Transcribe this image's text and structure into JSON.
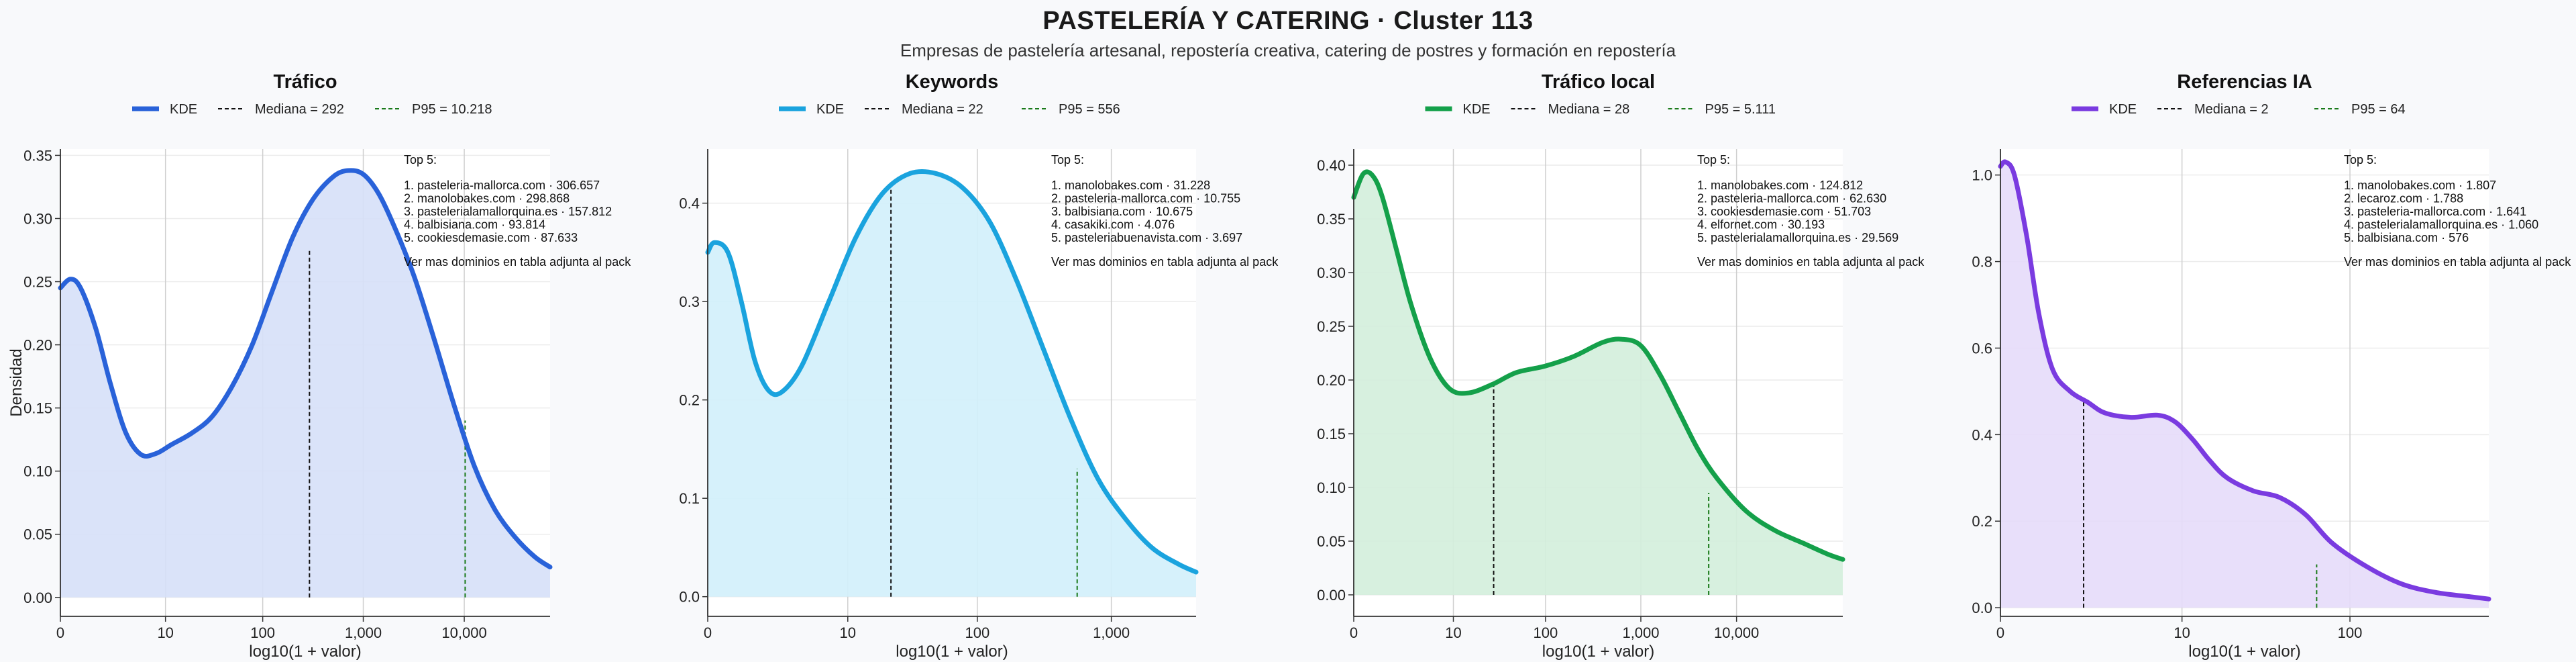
{
  "header": {
    "title": "PASTELERÍA Y CATERING · Cluster 113",
    "subtitle": "Empresas de pastelería artesanal, repostería creativa, catering de postres y formación en repostería"
  },
  "chart_data": [
    {
      "type": "area",
      "title": "Tráfico",
      "xlabel": "log10(1 + valor)",
      "ylabel": "Densidad",
      "color": "#2962d9",
      "fill": "#d6e0f8",
      "xlim": [
        0,
        4.85
      ],
      "ylim": [
        -0.015,
        0.355
      ],
      "yticks": [
        0.0,
        0.05,
        0.1,
        0.15,
        0.2,
        0.25,
        0.3,
        0.35
      ],
      "ytick_labels": [
        "0.00",
        "0.05",
        "0.10",
        "0.15",
        "0.20",
        "0.25",
        "0.30",
        "0.35"
      ],
      "xticks": [
        0,
        1.041,
        2.004,
        3.0,
        4.0
      ],
      "xtick_labels": [
        "0",
        "10",
        "100",
        "1,000",
        "10,000"
      ],
      "kde": {
        "x": [
          0,
          0.1,
          0.2,
          0.35,
          0.5,
          0.65,
          0.8,
          0.95,
          1.1,
          1.3,
          1.5,
          1.7,
          1.9,
          2.1,
          2.3,
          2.5,
          2.7,
          2.85,
          3.0,
          3.15,
          3.3,
          3.5,
          3.7,
          3.9,
          4.1,
          4.3,
          4.5,
          4.7,
          4.85
        ],
        "y": [
          0.245,
          0.252,
          0.245,
          0.213,
          0.168,
          0.13,
          0.113,
          0.114,
          0.121,
          0.13,
          0.143,
          0.167,
          0.2,
          0.243,
          0.285,
          0.315,
          0.333,
          0.338,
          0.335,
          0.32,
          0.295,
          0.255,
          0.205,
          0.152,
          0.104,
          0.07,
          0.048,
          0.032,
          0.024
        ]
      },
      "median": {
        "x": 2.467,
        "y": 0.275
      },
      "p95": {
        "x": 4.009,
        "y": 0.14
      },
      "legend": {
        "kde": "KDE",
        "median": "Mediana = 292",
        "p95": "P95 = 10.218"
      },
      "annotation": {
        "heading": "Top 5:",
        "lines": [
          "1. pasteleria-mallorca.com · 306.657",
          "2. manolobakes.com · 298.868",
          "3. pastelerialamallorquina.es · 157.812",
          "4. balbisiana.com · 93.814",
          "5. cookiesdemasie.com · 87.633"
        ],
        "footer": "Ver mas dominios en tabla adjunta al pack"
      }
    },
    {
      "type": "area",
      "title": "Keywords",
      "xlabel": "log10(1 + valor)",
      "ylabel": "",
      "color": "#1aa3de",
      "fill": "#d2effb",
      "xlim": [
        0,
        3.63
      ],
      "ylim": [
        -0.02,
        0.455
      ],
      "yticks": [
        0.0,
        0.1,
        0.2,
        0.3,
        0.4
      ],
      "ytick_labels": [
        "0.0",
        "0.1",
        "0.2",
        "0.3",
        "0.4"
      ],
      "xticks": [
        0,
        1.041,
        2.004,
        3.0
      ],
      "xtick_labels": [
        "0",
        "10",
        "100",
        "1,000"
      ],
      "kde": {
        "x": [
          0,
          0.05,
          0.15,
          0.25,
          0.35,
          0.45,
          0.55,
          0.7,
          0.9,
          1.1,
          1.3,
          1.5,
          1.7,
          1.9,
          2.1,
          2.3,
          2.5,
          2.7,
          2.9,
          3.1,
          3.3,
          3.5,
          3.63
        ],
        "y": [
          0.35,
          0.36,
          0.35,
          0.3,
          0.24,
          0.21,
          0.208,
          0.235,
          0.3,
          0.365,
          0.41,
          0.43,
          0.43,
          0.415,
          0.38,
          0.32,
          0.25,
          0.18,
          0.12,
          0.08,
          0.05,
          0.033,
          0.025
        ]
      },
      "median": {
        "x": 1.362,
        "y": 0.42
      },
      "p95": {
        "x": 2.746,
        "y": 0.13
      },
      "legend": {
        "kde": "KDE",
        "median": "Mediana = 22",
        "p95": "P95 = 556"
      },
      "annotation": {
        "heading": "Top 5:",
        "lines": [
          "1. manolobakes.com · 31.228",
          "2. pasteleria-mallorca.com · 10.755",
          "3. balbisiana.com · 10.675",
          "4. casakiki.com · 4.076",
          "5. pasteleriabuenavista.com · 3.697"
        ],
        "footer": "Ver mas dominios en tabla adjunta al pack"
      }
    },
    {
      "type": "area",
      "title": "Tráfico local",
      "xlabel": "log10(1 + valor)",
      "ylabel": "",
      "color": "#14a04a",
      "fill": "#d3eedc",
      "xlim": [
        0,
        5.11
      ],
      "ylim": [
        -0.02,
        0.415
      ],
      "yticks": [
        0.0,
        0.05,
        0.1,
        0.15,
        0.2,
        0.25,
        0.3,
        0.35,
        0.4
      ],
      "ytick_labels": [
        "0.00",
        "0.05",
        "0.10",
        "0.15",
        "0.20",
        "0.25",
        "0.30",
        "0.35",
        "0.40"
      ],
      "xticks": [
        0,
        1.041,
        2.004,
        3.0,
        4.0
      ],
      "xtick_labels": [
        "0",
        "10",
        "100",
        "1,000",
        "10,000"
      ],
      "kde": {
        "x": [
          0,
          0.1,
          0.2,
          0.3,
          0.45,
          0.6,
          0.8,
          1.0,
          1.2,
          1.45,
          1.7,
          2.0,
          2.3,
          2.6,
          2.8,
          3.0,
          3.2,
          3.4,
          3.6,
          3.8,
          4.1,
          4.4,
          4.7,
          4.95,
          5.11
        ],
        "y": [
          0.37,
          0.392,
          0.39,
          0.37,
          0.32,
          0.27,
          0.22,
          0.192,
          0.188,
          0.196,
          0.207,
          0.213,
          0.222,
          0.235,
          0.238,
          0.232,
          0.205,
          0.17,
          0.135,
          0.108,
          0.078,
          0.06,
          0.048,
          0.038,
          0.033
        ]
      },
      "median": {
        "x": 1.462,
        "y": 0.197
      },
      "p95": {
        "x": 3.709,
        "y": 0.095
      },
      "legend": {
        "kde": "KDE",
        "median": "Mediana = 28",
        "p95": "P95 = 5.111"
      },
      "annotation": {
        "heading": "Top 5:",
        "lines": [
          "1. manolobakes.com · 124.812",
          "2. pasteleria-mallorca.com · 62.630",
          "3. cookiesdemasie.com · 51.703",
          "4. elfornet.com · 30.193",
          "5. pastelerialamallorquina.es · 29.569"
        ],
        "footer": "Ver mas dominios en tabla adjunta al pack"
      }
    },
    {
      "type": "area",
      "title": "Referencias IA",
      "xlabel": "log10(1 + valor)",
      "ylabel": "",
      "color": "#7a3be0",
      "fill": "#e6dbfa",
      "xlim": [
        0,
        2.8
      ],
      "ylim": [
        -0.02,
        1.06
      ],
      "yticks": [
        0.0,
        0.2,
        0.4,
        0.6,
        0.8,
        1.0
      ],
      "ytick_labels": [
        "0.0",
        "0.2",
        "0.4",
        "0.6",
        "0.8",
        "1.0"
      ],
      "xticks": [
        0,
        1.041,
        2.004
      ],
      "xtick_labels": [
        "0",
        "10",
        "100"
      ],
      "kde": {
        "x": [
          0,
          0.03,
          0.08,
          0.15,
          0.22,
          0.3,
          0.4,
          0.5,
          0.6,
          0.75,
          0.9,
          1.0,
          1.1,
          1.2,
          1.3,
          1.45,
          1.6,
          1.75,
          1.9,
          2.1,
          2.3,
          2.5,
          2.7,
          2.8
        ],
        "y": [
          1.02,
          1.03,
          1.0,
          0.86,
          0.68,
          0.55,
          0.5,
          0.475,
          0.45,
          0.44,
          0.445,
          0.43,
          0.39,
          0.34,
          0.3,
          0.27,
          0.255,
          0.215,
          0.15,
          0.095,
          0.055,
          0.035,
          0.025,
          0.02
        ]
      },
      "median": {
        "x": 0.477,
        "y": 0.48
      },
      "p95": {
        "x": 1.813,
        "y": 0.1
      },
      "legend": {
        "kde": "KDE",
        "median": "Mediana = 2",
        "p95": "P95 = 64"
      },
      "annotation": {
        "heading": "Top 5:",
        "lines": [
          "1. manolobakes.com · 1.807",
          "2. lecaroz.com · 1.788",
          "3. pasteleria-mallorca.com · 1.641",
          "4. pastelerialamallorquina.es · 1.060",
          "5. balbisiana.com · 576"
        ],
        "footer": "Ver mas dominios en tabla adjunta al pack"
      }
    }
  ]
}
